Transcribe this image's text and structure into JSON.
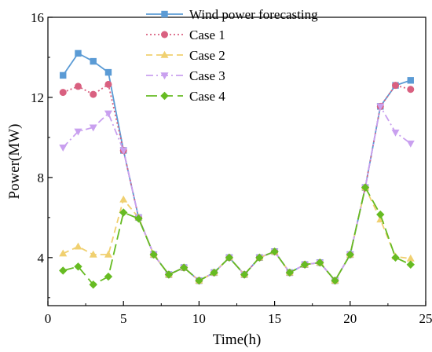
{
  "chart_data": {
    "type": "line",
    "title": "",
    "xlabel": "Time(h)",
    "ylabel": "Power(MW)",
    "xlim": [
      0,
      25
    ],
    "ylim": [
      1.6,
      16
    ],
    "xticks": [
      0,
      5,
      10,
      15,
      20,
      25
    ],
    "yticks": [
      4,
      8,
      12,
      16
    ],
    "x": [
      1,
      2,
      3,
      4,
      5,
      6,
      7,
      8,
      9,
      10,
      11,
      12,
      13,
      14,
      15,
      16,
      17,
      18,
      19,
      20,
      21,
      22,
      23,
      24
    ],
    "legend_position": "top-right",
    "grid": false,
    "series": [
      {
        "name": "Wind power forecasting",
        "color": "#5b9bd5",
        "line_style": "solid",
        "marker": "square",
        "values": [
          13.1,
          14.2,
          13.8,
          13.25,
          9.35,
          6.0,
          4.15,
          3.15,
          3.5,
          2.85,
          3.25,
          4.0,
          3.15,
          4.0,
          4.3,
          3.25,
          3.65,
          3.75,
          2.85,
          4.15,
          7.5,
          11.55,
          12.6,
          12.85
        ]
      },
      {
        "name": "Case 1",
        "color": "#d96080",
        "line_style": "dotted",
        "marker": "circle",
        "values": [
          12.25,
          12.55,
          12.15,
          12.65,
          9.35,
          6.0,
          4.15,
          3.15,
          3.5,
          2.85,
          3.25,
          4.0,
          3.15,
          4.0,
          4.3,
          3.25,
          3.65,
          3.75,
          2.85,
          4.15,
          7.5,
          11.55,
          12.6,
          12.4
        ]
      },
      {
        "name": "Case 2",
        "color": "#f0d070",
        "line_style": "dashed",
        "marker": "triangle-up",
        "values": [
          4.2,
          4.55,
          4.15,
          4.15,
          6.9,
          6.0,
          4.15,
          3.15,
          3.5,
          2.85,
          3.25,
          4.0,
          3.15,
          4.0,
          4.3,
          3.25,
          3.65,
          3.75,
          2.85,
          4.15,
          7.5,
          5.9,
          4.05,
          3.95
        ]
      },
      {
        "name": "Case 3",
        "color": "#c9a0ef",
        "line_style": "dashdot",
        "marker": "triangle-down",
        "values": [
          9.5,
          10.3,
          10.5,
          11.2,
          9.35,
          6.0,
          4.15,
          3.15,
          3.5,
          2.85,
          3.25,
          4.0,
          3.15,
          4.0,
          4.3,
          3.25,
          3.65,
          3.75,
          2.85,
          4.15,
          7.5,
          11.55,
          10.25,
          9.7
        ]
      },
      {
        "name": "Case 4",
        "color": "#66bb22",
        "line_style": "longdash",
        "marker": "diamond",
        "values": [
          3.35,
          3.55,
          2.65,
          3.05,
          6.25,
          5.95,
          4.15,
          3.15,
          3.5,
          2.85,
          3.25,
          4.0,
          3.15,
          4.0,
          4.3,
          3.25,
          3.65,
          3.75,
          2.85,
          4.15,
          7.5,
          6.15,
          4.0,
          3.65
        ]
      }
    ]
  }
}
